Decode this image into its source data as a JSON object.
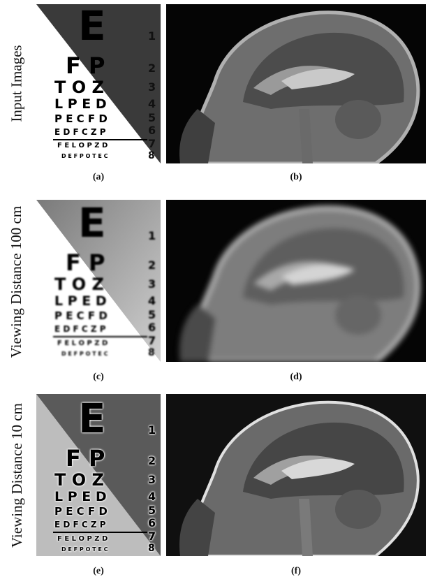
{
  "rows": [
    {
      "label": "Input Images",
      "captions": [
        "(a)",
        "(b)"
      ]
    },
    {
      "label": "Viewing Distance 100 cm",
      "captions": [
        "(c)",
        "(d)"
      ]
    },
    {
      "label": "Viewing Distance 10 cm",
      "captions": [
        "(e)",
        "(f)"
      ]
    }
  ],
  "eye_chart": {
    "lines": [
      "E",
      "F P",
      "T O Z",
      "L P E D",
      "P E C F D",
      "E D F C Z P",
      "F E L O P Z D",
      "D E F P O T E C"
    ],
    "numbers": [
      "1",
      "2",
      "3",
      "4",
      "5",
      "6",
      "7",
      "8"
    ]
  },
  "colors": {
    "background": "#ffffff",
    "mri_background": "#050505"
  }
}
